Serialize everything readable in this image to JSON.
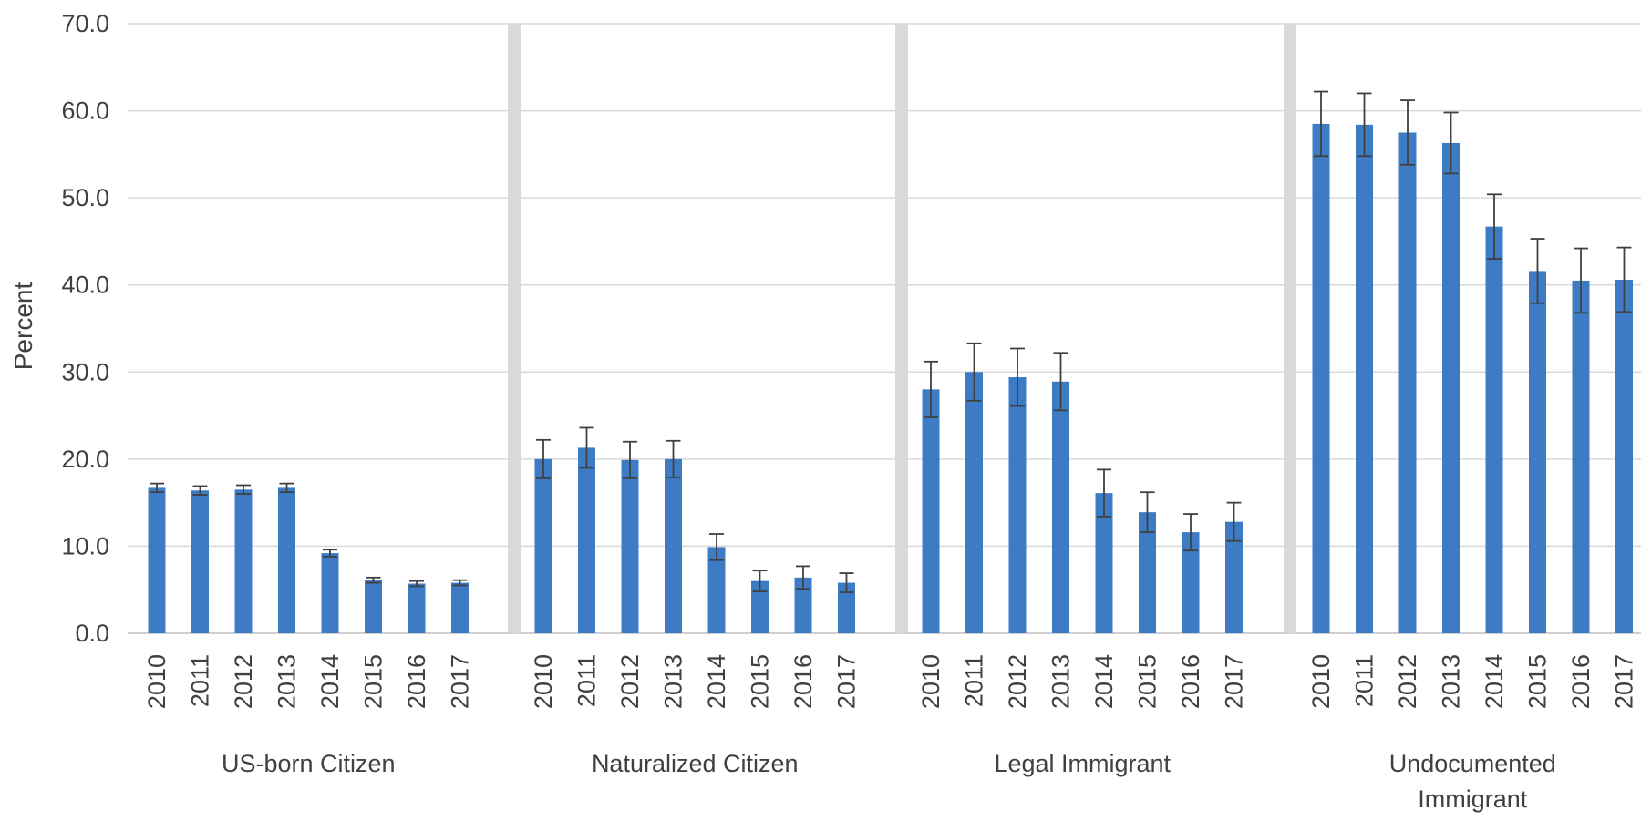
{
  "chart_data": {
    "type": "bar",
    "title": "",
    "ylabel": "Percent",
    "ylim": [
      0,
      70
    ],
    "yticks": [
      "0.0",
      "10.0",
      "20.0",
      "30.0",
      "40.0",
      "50.0",
      "60.0",
      "70.0"
    ],
    "grid": true,
    "legend": "none",
    "bar_color": "#3d7cc4",
    "error_color": "#404040",
    "separator_color": "#d9d9d9",
    "groups": [
      {
        "name": "US-born Citizen",
        "years": [
          "2010",
          "2011",
          "2012",
          "2013",
          "2014",
          "2015",
          "2016",
          "2017"
        ],
        "values": [
          16.7,
          16.4,
          16.5,
          16.7,
          9.2,
          6.1,
          5.7,
          5.8
        ],
        "errors": [
          0.5,
          0.5,
          0.5,
          0.5,
          0.4,
          0.3,
          0.3,
          0.3
        ]
      },
      {
        "name": "Naturalized Citizen",
        "years": [
          "2010",
          "2011",
          "2012",
          "2013",
          "2014",
          "2015",
          "2016",
          "2017"
        ],
        "values": [
          20.0,
          21.3,
          19.9,
          20.0,
          9.9,
          6.0,
          6.4,
          5.8
        ],
        "errors": [
          2.2,
          2.3,
          2.1,
          2.1,
          1.5,
          1.2,
          1.3,
          1.1
        ]
      },
      {
        "name": "Legal Immigrant",
        "years": [
          "2010",
          "2011",
          "2012",
          "2013",
          "2014",
          "2015",
          "2016",
          "2017"
        ],
        "values": [
          28.0,
          30.0,
          29.4,
          28.9,
          16.1,
          13.9,
          11.6,
          12.8
        ],
        "errors": [
          3.2,
          3.3,
          3.3,
          3.3,
          2.7,
          2.3,
          2.1,
          2.2
        ]
      },
      {
        "name": "Undocumented Immigrant",
        "years": [
          "2010",
          "2011",
          "2012",
          "2013",
          "2014",
          "2015",
          "2016",
          "2017"
        ],
        "values": [
          58.5,
          58.4,
          57.5,
          56.3,
          46.7,
          41.6,
          40.5,
          40.6
        ],
        "errors": [
          3.7,
          3.6,
          3.7,
          3.5,
          3.7,
          3.7,
          3.7,
          3.7
        ]
      }
    ]
  }
}
